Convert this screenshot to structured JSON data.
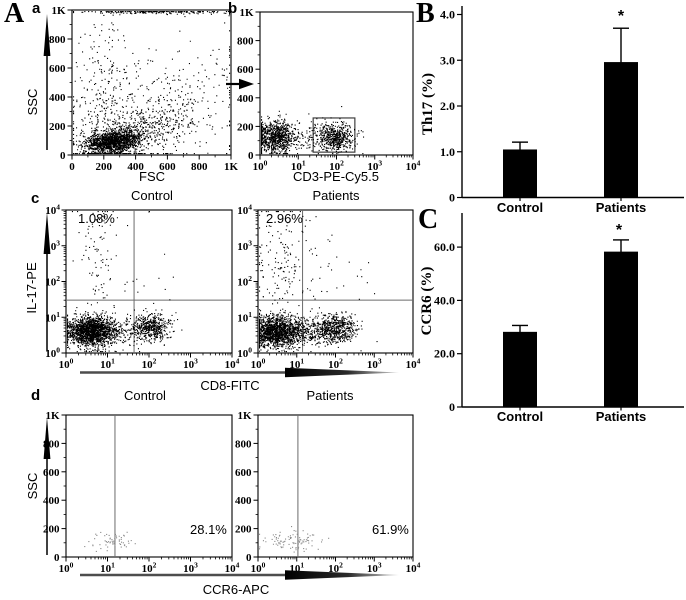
{
  "figure": {
    "panel_letters": {
      "A": "A",
      "B": "B",
      "C": "C"
    },
    "sub_labels": {
      "a": "a",
      "b": "b",
      "c": "c",
      "d": "d"
    },
    "column_headers": {
      "row1_control": "Control",
      "row1_patients": "Patients",
      "rowd_control": "Control",
      "rowd_patients": "Patients"
    },
    "colors": {
      "ink": "#000000",
      "dot": "#000000",
      "dot_light": "#8a8a8a",
      "quadrant_line": "#6b6b6b",
      "gate": "#3f3f3f",
      "bar": "#000000",
      "background": "#ffffff"
    }
  },
  "chart_data": [
    {
      "id": "a",
      "type": "scatter",
      "sample": "Control",
      "xlabel": "FSC",
      "ylabel": "SSC",
      "x_scale": "linear",
      "y_scale": "linear",
      "xlim": [
        0,
        1000
      ],
      "ylim": [
        0,
        1000
      ],
      "x_ticks": [
        {
          "v": 0,
          "label": "0"
        },
        {
          "v": 200,
          "label": "200"
        },
        {
          "v": 400,
          "label": "400"
        },
        {
          "v": 600,
          "label": "600"
        },
        {
          "v": 800,
          "label": "800"
        },
        {
          "v": 1000,
          "label": "1K"
        }
      ],
      "y_ticks": [
        {
          "v": 0,
          "label": "0"
        },
        {
          "v": 200,
          "label": "200"
        },
        {
          "v": 400,
          "label": "400"
        },
        {
          "v": 600,
          "label": "600"
        },
        {
          "v": 800,
          "label": "800"
        },
        {
          "v": 1000,
          "label": "1K"
        }
      ],
      "clusters": [
        {
          "n": 1500,
          "cx": 253,
          "cy": 95,
          "sx": 85,
          "sy": 40,
          "tilt": 0.12
        },
        {
          "n": 450,
          "cx": 420,
          "cy": 175,
          "sx": 185,
          "sy": 90,
          "tilt": 0.35
        },
        {
          "n": 230,
          "cx": 200,
          "cy": 400,
          "sx": 90,
          "sy": 300,
          "tilt": 0
        },
        {
          "n": 330,
          "cx": 400,
          "cy": 250,
          "sx": 330,
          "sy": 250,
          "tilt": 0.3
        },
        {
          "n": 120,
          "cx": 600,
          "cy": 380,
          "sx": 240,
          "sy": 200,
          "tilt": 0.4
        },
        {
          "n": 210,
          "cx": 540,
          "cy": 990,
          "sx": 270,
          "sy": 7,
          "tilt": 0
        }
      ]
    },
    {
      "id": "b",
      "type": "scatter",
      "sample": "Patients",
      "xlabel": "CD3-PE-Cy5.5",
      "ylabel": "SSC",
      "x_scale": "log",
      "y_scale": "linear",
      "xlim_decades": [
        0,
        4
      ],
      "ylim": [
        0,
        1000
      ],
      "x_ticks_exp": [
        0,
        1,
        2,
        3,
        4
      ],
      "y_ticks": [
        {
          "v": 0,
          "label": "0"
        },
        {
          "v": 200,
          "label": "200"
        },
        {
          "v": 400,
          "label": "400"
        },
        {
          "v": 600,
          "label": "600"
        },
        {
          "v": 800,
          "label": "800"
        },
        {
          "v": 1000,
          "label": "1K"
        }
      ],
      "gate": {
        "x": [
          1.39,
          2.48
        ],
        "y": [
          20,
          259
        ]
      },
      "clusters": [
        {
          "n": 900,
          "cx": 0.35,
          "cy": 128,
          "sx": 0.3,
          "sy": 55
        },
        {
          "n": 520,
          "cx": 1.95,
          "cy": 126,
          "sx": 0.26,
          "sy": 48
        },
        {
          "n": 90,
          "cx": 1.15,
          "cy": 128,
          "sx": 0.55,
          "sy": 50
        },
        {
          "n": 30,
          "cx": 0.9,
          "cy": 205,
          "sx": 0.8,
          "sy": 55
        }
      ]
    },
    {
      "id": "c_control",
      "type": "scatter",
      "sample": "Control",
      "xlabel": "CD8-FITC",
      "ylabel": "IL-17-PE",
      "x_scale": "log",
      "y_scale": "log",
      "xlim_decades": [
        0,
        4
      ],
      "ylim_decades": [
        0,
        4
      ],
      "x_ticks_exp": [
        0,
        1,
        2,
        3,
        4
      ],
      "y_ticks_exp": [
        0,
        1,
        2,
        3,
        4
      ],
      "annotation": "1.08%",
      "quadrant": {
        "vline": 1.64,
        "hline": 1.48
      },
      "clusters": [
        {
          "n": 1600,
          "cx": 0.58,
          "cy": 0.62,
          "sx": 0.29,
          "sy": 0.21
        },
        {
          "n": 260,
          "cx": 1.15,
          "cy": 0.63,
          "sx": 0.55,
          "sy": 0.16
        },
        {
          "n": 460,
          "cx": 2.02,
          "cy": 0.72,
          "sx": 0.22,
          "sy": 0.19
        },
        {
          "n": 70,
          "cx": 0.78,
          "cy": 2.75,
          "sx": 0.18,
          "sy": 0.95
        },
        {
          "n": 35,
          "cx": 1.3,
          "cy": 2.3,
          "sx": 0.7,
          "sy": 1.1
        },
        {
          "n": 12,
          "cx": 0.85,
          "cy": 3.65,
          "sx": 0.22,
          "sy": 0.16
        }
      ]
    },
    {
      "id": "c_patients",
      "type": "scatter",
      "sample": "Patients",
      "xlabel": "CD8-FITC",
      "ylabel": "IL-17-PE",
      "x_scale": "log",
      "y_scale": "log",
      "xlim_decades": [
        0,
        4
      ],
      "ylim_decades": [
        0,
        4
      ],
      "x_ticks_exp": [
        0,
        1,
        2,
        3,
        4
      ],
      "y_ticks_exp": [
        0,
        1,
        2,
        3,
        4
      ],
      "annotation": "2.96%",
      "quadrant": {
        "vline": 1.15,
        "hline": 1.48
      },
      "clusters": [
        {
          "n": 1500,
          "cx": 0.45,
          "cy": 0.6,
          "sx": 0.35,
          "sy": 0.22
        },
        {
          "n": 280,
          "cx": 1.2,
          "cy": 0.62,
          "sx": 0.5,
          "sy": 0.17
        },
        {
          "n": 550,
          "cx": 1.95,
          "cy": 0.7,
          "sx": 0.3,
          "sy": 0.2
        },
        {
          "n": 140,
          "cx": 0.55,
          "cy": 2.55,
          "sx": 0.35,
          "sy": 0.95
        },
        {
          "n": 35,
          "cx": 1.5,
          "cy": 2.4,
          "sx": 0.55,
          "sy": 0.9
        },
        {
          "n": 8,
          "cx": 2.6,
          "cy": 2.0,
          "sx": 0.35,
          "sy": 0.4
        }
      ]
    },
    {
      "id": "d_control",
      "type": "scatter",
      "sample": "Control",
      "xlabel": "CCR6-APC",
      "ylabel": "SSC",
      "x_scale": "log",
      "y_scale": "linear",
      "xlim_decades": [
        0,
        4
      ],
      "ylim": [
        0,
        1000
      ],
      "x_ticks_exp": [
        0,
        1,
        2,
        3,
        4
      ],
      "y_ticks": [
        {
          "v": 0,
          "label": "0"
        },
        {
          "v": 200,
          "label": "200"
        },
        {
          "v": 400,
          "label": "400"
        },
        {
          "v": 600,
          "label": "600"
        },
        {
          "v": 800,
          "label": "800"
        },
        {
          "v": 1000,
          "label": "1K"
        }
      ],
      "annotation": "28.1%",
      "gate_line": 1.18,
      "clusters": [
        {
          "n": 60,
          "cx": 1.05,
          "cy": 115,
          "sx": 0.25,
          "sy": 30,
          "light": true
        }
      ]
    },
    {
      "id": "d_patients",
      "type": "scatter",
      "sample": "Patients",
      "xlabel": "CCR6-APC",
      "ylabel": "SSC",
      "x_scale": "log",
      "y_scale": "linear",
      "xlim_decades": [
        0,
        4
      ],
      "ylim": [
        0,
        1000
      ],
      "x_ticks_exp": [
        0,
        1,
        2,
        3,
        4
      ],
      "y_ticks": [
        {
          "v": 0,
          "label": "0"
        },
        {
          "v": 200,
          "label": "200"
        },
        {
          "v": 400,
          "label": "400"
        },
        {
          "v": 600,
          "label": "600"
        },
        {
          "v": 800,
          "label": "800"
        },
        {
          "v": 1000,
          "label": "1K"
        }
      ],
      "annotation": "61.9%",
      "gate_line": 1.03,
      "clusters": [
        {
          "n": 95,
          "cx": 0.9,
          "cy": 115,
          "sx": 0.37,
          "sy": 30,
          "light": true
        }
      ]
    },
    {
      "id": "B",
      "type": "bar",
      "ylabel": "Th17 (%)",
      "categories": [
        "Control",
        "Patients"
      ],
      "values": [
        1.05,
        2.96
      ],
      "errors": [
        0.16,
        0.74
      ],
      "significance": [
        "",
        "*"
      ],
      "ylim": [
        0,
        4.2
      ],
      "y_ticks": [
        {
          "v": 0,
          "label": "0"
        },
        {
          "v": 1,
          "label": "1.0"
        },
        {
          "v": 2,
          "label": "2.0"
        },
        {
          "v": 3,
          "label": "3.0"
        },
        {
          "v": 4,
          "label": "4.0"
        }
      ]
    },
    {
      "id": "C",
      "type": "bar",
      "ylabel": "CCR6 (%)",
      "categories": [
        "Control",
        "Patients"
      ],
      "values": [
        28.2,
        58.3
      ],
      "errors": [
        2.4,
        4.4
      ],
      "significance": [
        "",
        "*"
      ],
      "ylim": [
        0,
        72
      ],
      "y_ticks": [
        {
          "v": 0,
          "label": "0"
        },
        {
          "v": 20,
          "label": "20.0"
        },
        {
          "v": 40,
          "label": "40.0"
        },
        {
          "v": 60,
          "label": "60.0"
        }
      ]
    }
  ]
}
